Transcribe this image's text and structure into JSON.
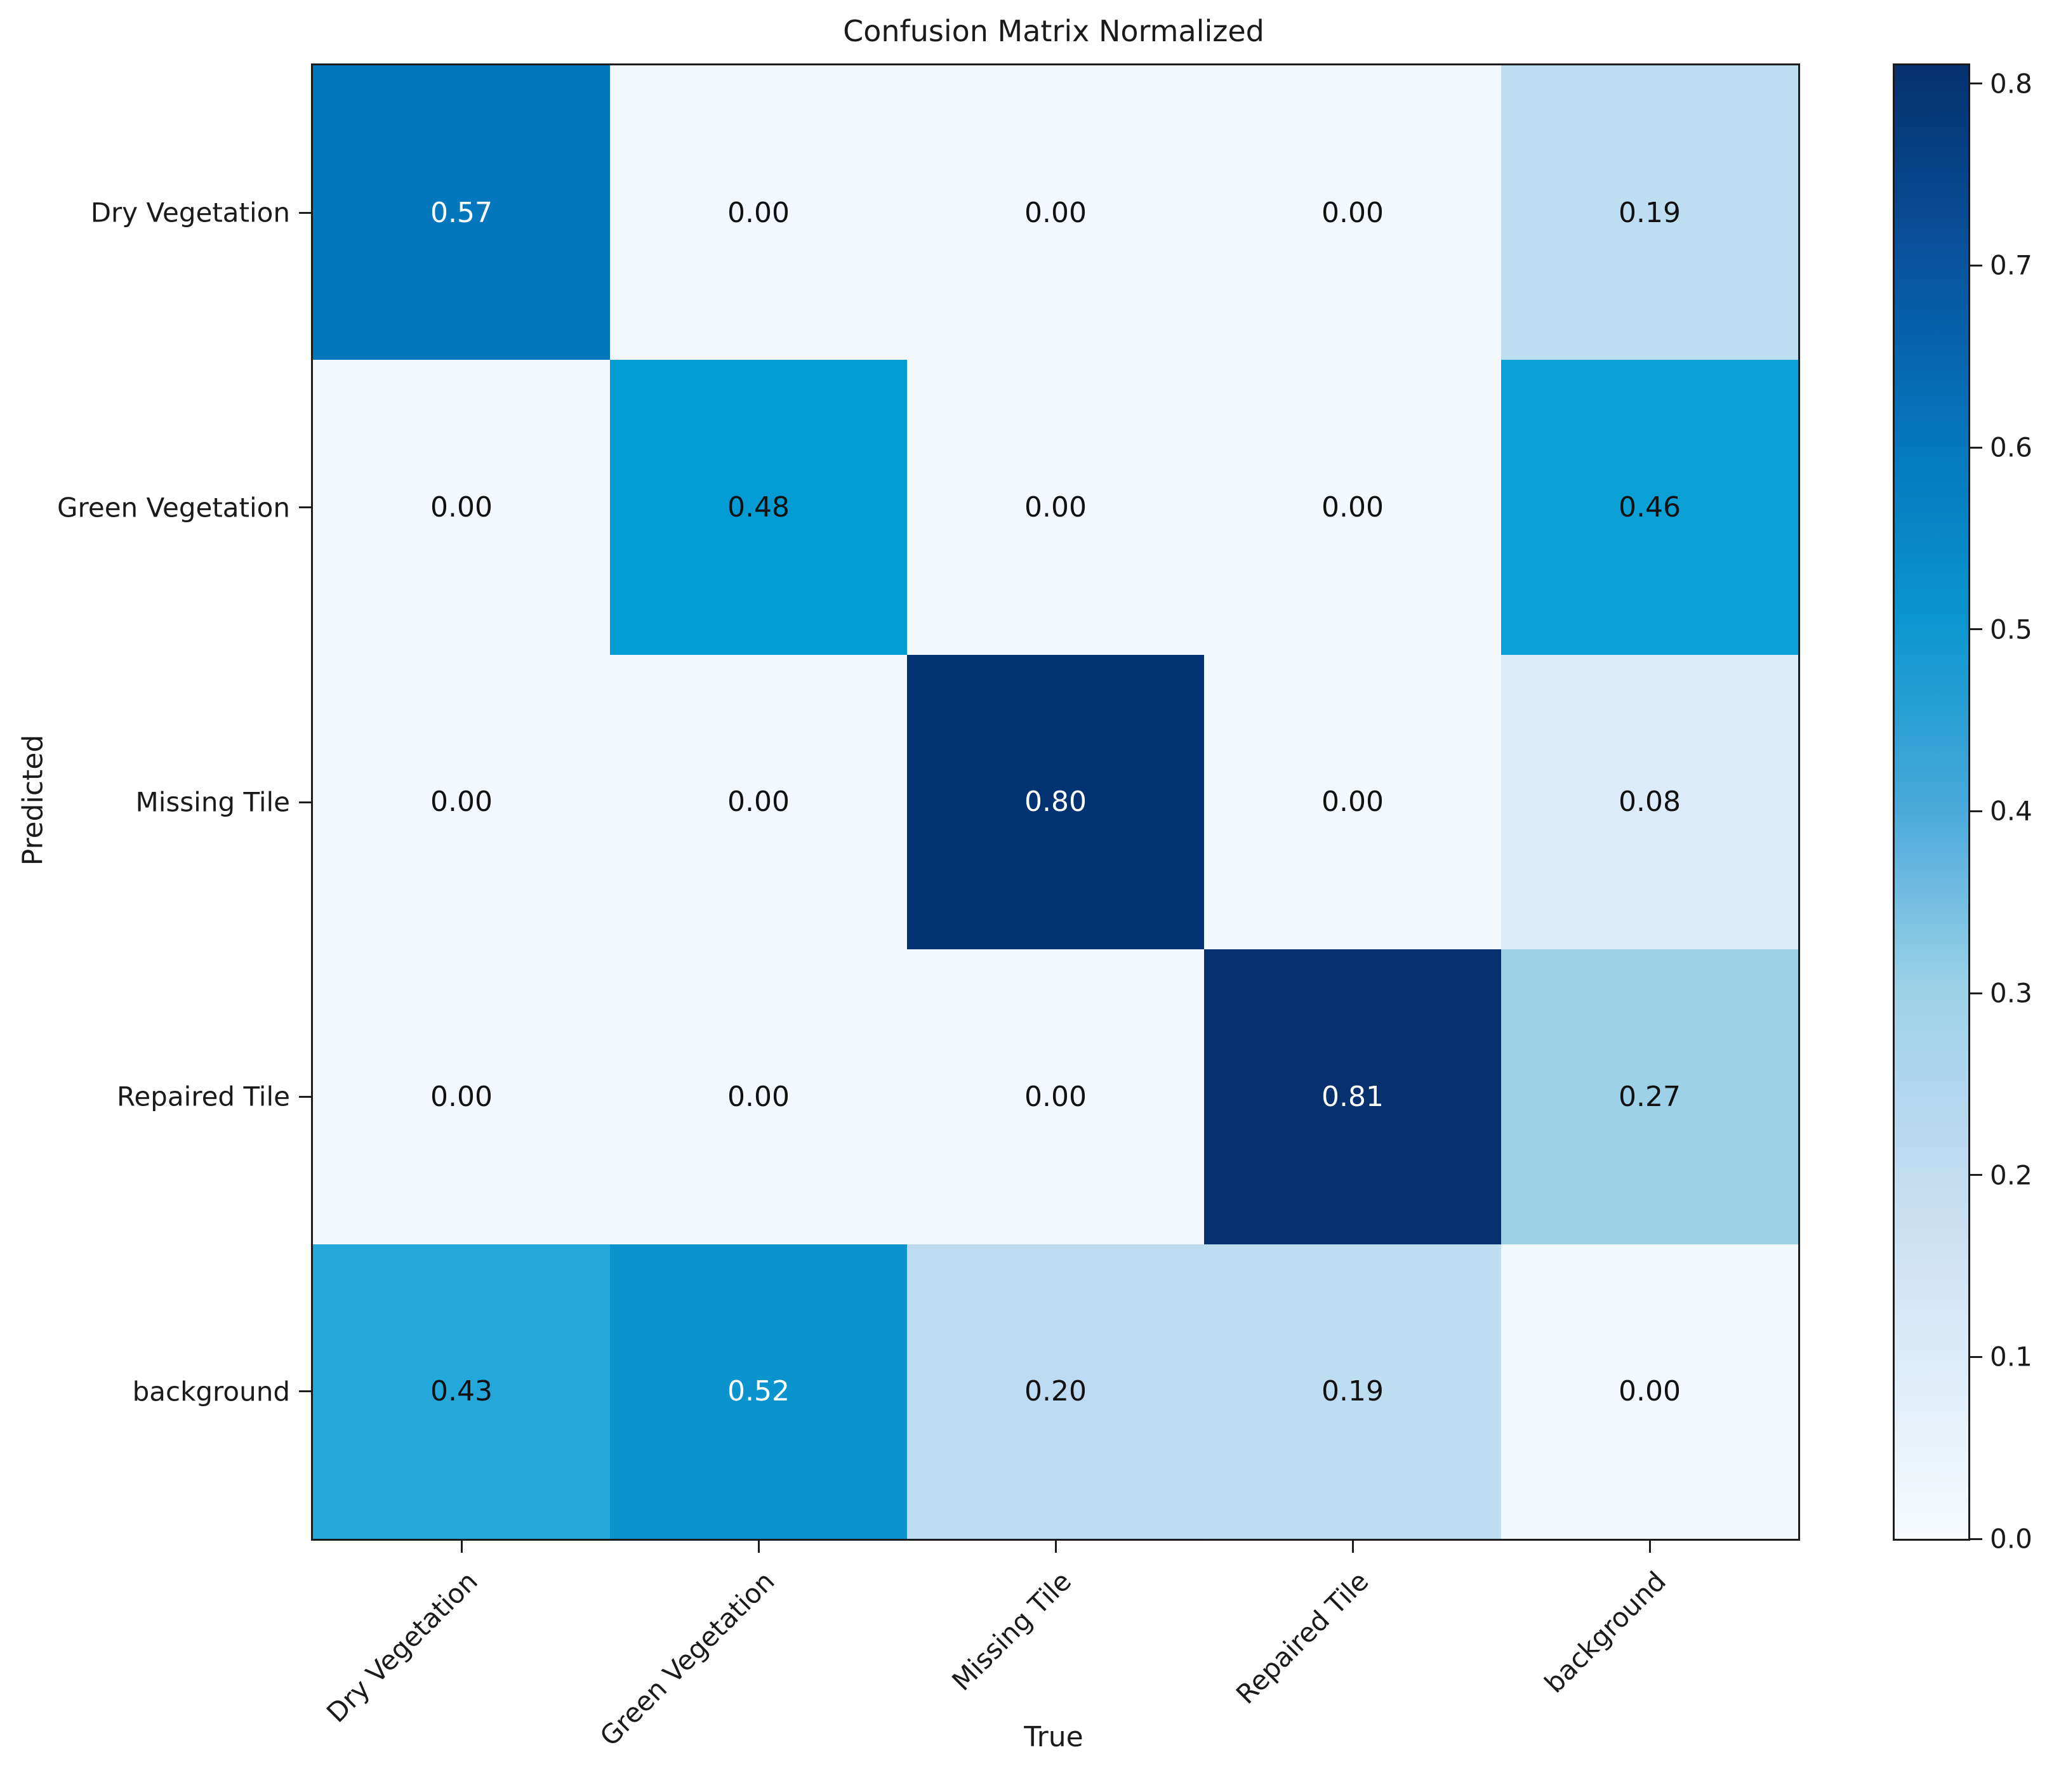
{
  "chart_data": {
    "type": "heatmap",
    "title": "Confusion Matrix Normalized",
    "xlabel": "True",
    "ylabel": "Predicted",
    "x_categories": [
      "Dry Vegetation",
      "Green Vegetation",
      "Missing Tile",
      "Repaired Tile",
      "background"
    ],
    "y_categories": [
      "Dry Vegetation",
      "Green Vegetation",
      "Missing Tile",
      "Repaired Tile",
      "background"
    ],
    "values": [
      [
        0.57,
        0.0,
        0.0,
        0.0,
        0.19
      ],
      [
        0.0,
        0.48,
        0.0,
        0.0,
        0.46
      ],
      [
        0.0,
        0.0,
        0.8,
        0.0,
        0.08
      ],
      [
        0.0,
        0.0,
        0.0,
        0.81,
        0.27
      ],
      [
        0.43,
        0.52,
        0.2,
        0.19,
        0.0
      ]
    ],
    "cell_labels": [
      [
        "0.57",
        "0.00",
        "0.00",
        "0.00",
        "0.19"
      ],
      [
        "0.00",
        "0.48",
        "0.00",
        "0.00",
        "0.46"
      ],
      [
        "0.00",
        "0.00",
        "0.80",
        "0.00",
        "0.08"
      ],
      [
        "0.00",
        "0.00",
        "0.00",
        "0.81",
        "0.27"
      ],
      [
        "0.43",
        "0.52",
        "0.20",
        "0.19",
        "0.00"
      ]
    ],
    "cell_colors": [
      [
        "#0578BD",
        "#F2F8FD",
        "#F2F8FD",
        "#F2F8FD",
        "#BDDDF1"
      ],
      [
        "#F2F8FD",
        "#019CD3",
        "#F2F8FD",
        "#F2F8FD",
        "#0AA0D5"
      ],
      [
        "#F2F8FD",
        "#F2F8FD",
        "#013272",
        "#F2F8FD",
        "#DCEBF7"
      ],
      [
        "#F2F8FD",
        "#F2F8FD",
        "#F2F8FD",
        "#06306E",
        "#9CD1E8"
      ],
      [
        "#24A7DB",
        "#0A93CD",
        "#BCDAF0",
        "#BDDDF1",
        "#F2F8FD"
      ]
    ],
    "cell_text_colors": [
      [
        "#ffffff",
        "#111111",
        "#111111",
        "#111111",
        "#111111"
      ],
      [
        "#111111",
        "#111111",
        "#111111",
        "#111111",
        "#111111"
      ],
      [
        "#111111",
        "#111111",
        "#ffffff",
        "#111111",
        "#111111"
      ],
      [
        "#111111",
        "#111111",
        "#111111",
        "#ffffff",
        "#111111"
      ],
      [
        "#111111",
        "#ffffff",
        "#111111",
        "#111111",
        "#111111"
      ]
    ],
    "colormap": "Blues",
    "vmin": 0.0,
    "vmax": 0.81,
    "grid": false,
    "legend_position": "right-colorbar",
    "colorbar": {
      "ticks": [
        0.0,
        0.1,
        0.2,
        0.3,
        0.4,
        0.5,
        0.6,
        0.7,
        0.8
      ],
      "tick_labels": [
        "0.0",
        "0.1",
        "0.2",
        "0.3",
        "0.4",
        "0.5",
        "0.6",
        "0.7",
        "0.8"
      ],
      "gradient_stops": [
        "#F7FBFF",
        "#DCEBF7",
        "#C2DCF0",
        "#9CD1E8",
        "#47A8DA",
        "#0A96CF",
        "#0575BC",
        "#08519C",
        "#06306E"
      ]
    }
  }
}
